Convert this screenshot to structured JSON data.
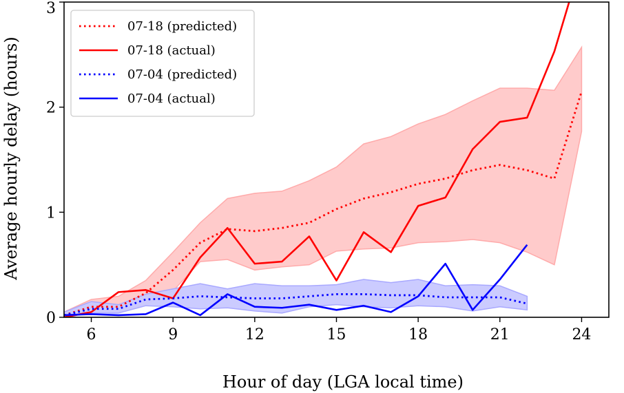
{
  "chart_data": {
    "type": "line",
    "title": "",
    "xlabel": "Hour of day (LGA local time)",
    "ylabel": "Average hourly delay (hours)",
    "xlim": [
      5,
      25
    ],
    "ylim": [
      0,
      3
    ],
    "xticks": [
      6,
      9,
      12,
      15,
      18,
      21,
      24
    ],
    "yticks": [
      0,
      1,
      2,
      3
    ],
    "grid": false,
    "legend_position": "upper-left",
    "series": [
      {
        "name": "07-18 (predicted)",
        "style": "dotted",
        "color": "#ff0000",
        "x": [
          5,
          6,
          7,
          8,
          9,
          10,
          11,
          12,
          13,
          14,
          15,
          16,
          17,
          18,
          19,
          20,
          21,
          22,
          23,
          24
        ],
        "y": [
          0.02,
          0.1,
          0.1,
          0.23,
          0.45,
          0.71,
          0.84,
          0.82,
          0.85,
          0.9,
          1.03,
          1.13,
          1.19,
          1.27,
          1.32,
          1.4,
          1.45,
          1.4,
          1.32,
          2.15
        ],
        "band_upper": [
          0.05,
          0.17,
          0.2,
          0.35,
          0.62,
          0.9,
          1.13,
          1.18,
          1.2,
          1.3,
          1.43,
          1.65,
          1.72,
          1.84,
          1.93,
          2.06,
          2.18,
          2.18,
          2.16,
          2.57
        ],
        "band_lower": [
          0.0,
          0.06,
          0.05,
          0.12,
          0.25,
          0.53,
          0.55,
          0.45,
          0.48,
          0.5,
          0.63,
          0.65,
          0.66,
          0.71,
          0.72,
          0.74,
          0.71,
          0.62,
          0.5,
          1.77
        ]
      },
      {
        "name": "07-18 (actual)",
        "style": "solid",
        "color": "#ff0000",
        "x": [
          5,
          6,
          7,
          8,
          9,
          10,
          11,
          12,
          13,
          14,
          15,
          16,
          17,
          18,
          19,
          20,
          21,
          22,
          23,
          23.6
        ],
        "y": [
          0.0,
          0.05,
          0.24,
          0.26,
          0.18,
          0.57,
          0.85,
          0.51,
          0.53,
          0.77,
          0.35,
          0.81,
          0.62,
          1.06,
          1.14,
          1.6,
          1.86,
          1.9,
          2.53,
          3.05
        ]
      },
      {
        "name": "07-04 (predicted)",
        "style": "dotted",
        "color": "#0000ff",
        "x": [
          5,
          6,
          7,
          8,
          9,
          10,
          11,
          12,
          13,
          14,
          15,
          16,
          17,
          18,
          19,
          20,
          21,
          22
        ],
        "y": [
          0.02,
          0.08,
          0.08,
          0.17,
          0.18,
          0.2,
          0.19,
          0.18,
          0.18,
          0.2,
          0.22,
          0.22,
          0.21,
          0.21,
          0.19,
          0.19,
          0.19,
          0.13
        ],
        "band_upper": [
          0.05,
          0.15,
          0.12,
          0.22,
          0.27,
          0.32,
          0.27,
          0.32,
          0.3,
          0.3,
          0.31,
          0.36,
          0.33,
          0.36,
          0.3,
          0.31,
          0.3,
          0.2
        ],
        "band_lower": [
          0.0,
          0.04,
          0.04,
          0.11,
          0.1,
          0.08,
          0.09,
          0.06,
          0.04,
          0.1,
          0.12,
          0.1,
          0.09,
          0.11,
          0.1,
          0.06,
          0.1,
          0.07
        ]
      },
      {
        "name": "07-04 (actual)",
        "style": "solid",
        "color": "#0000ff",
        "x": [
          5,
          6,
          7,
          8,
          9,
          10,
          11,
          12,
          13,
          14,
          15,
          16,
          17,
          18,
          19,
          20,
          21,
          22
        ],
        "y": [
          0.02,
          0.03,
          0.02,
          0.03,
          0.14,
          0.02,
          0.22,
          0.1,
          0.09,
          0.12,
          0.07,
          0.11,
          0.05,
          0.2,
          0.51,
          0.07,
          0.36,
          0.69
        ]
      }
    ]
  }
}
